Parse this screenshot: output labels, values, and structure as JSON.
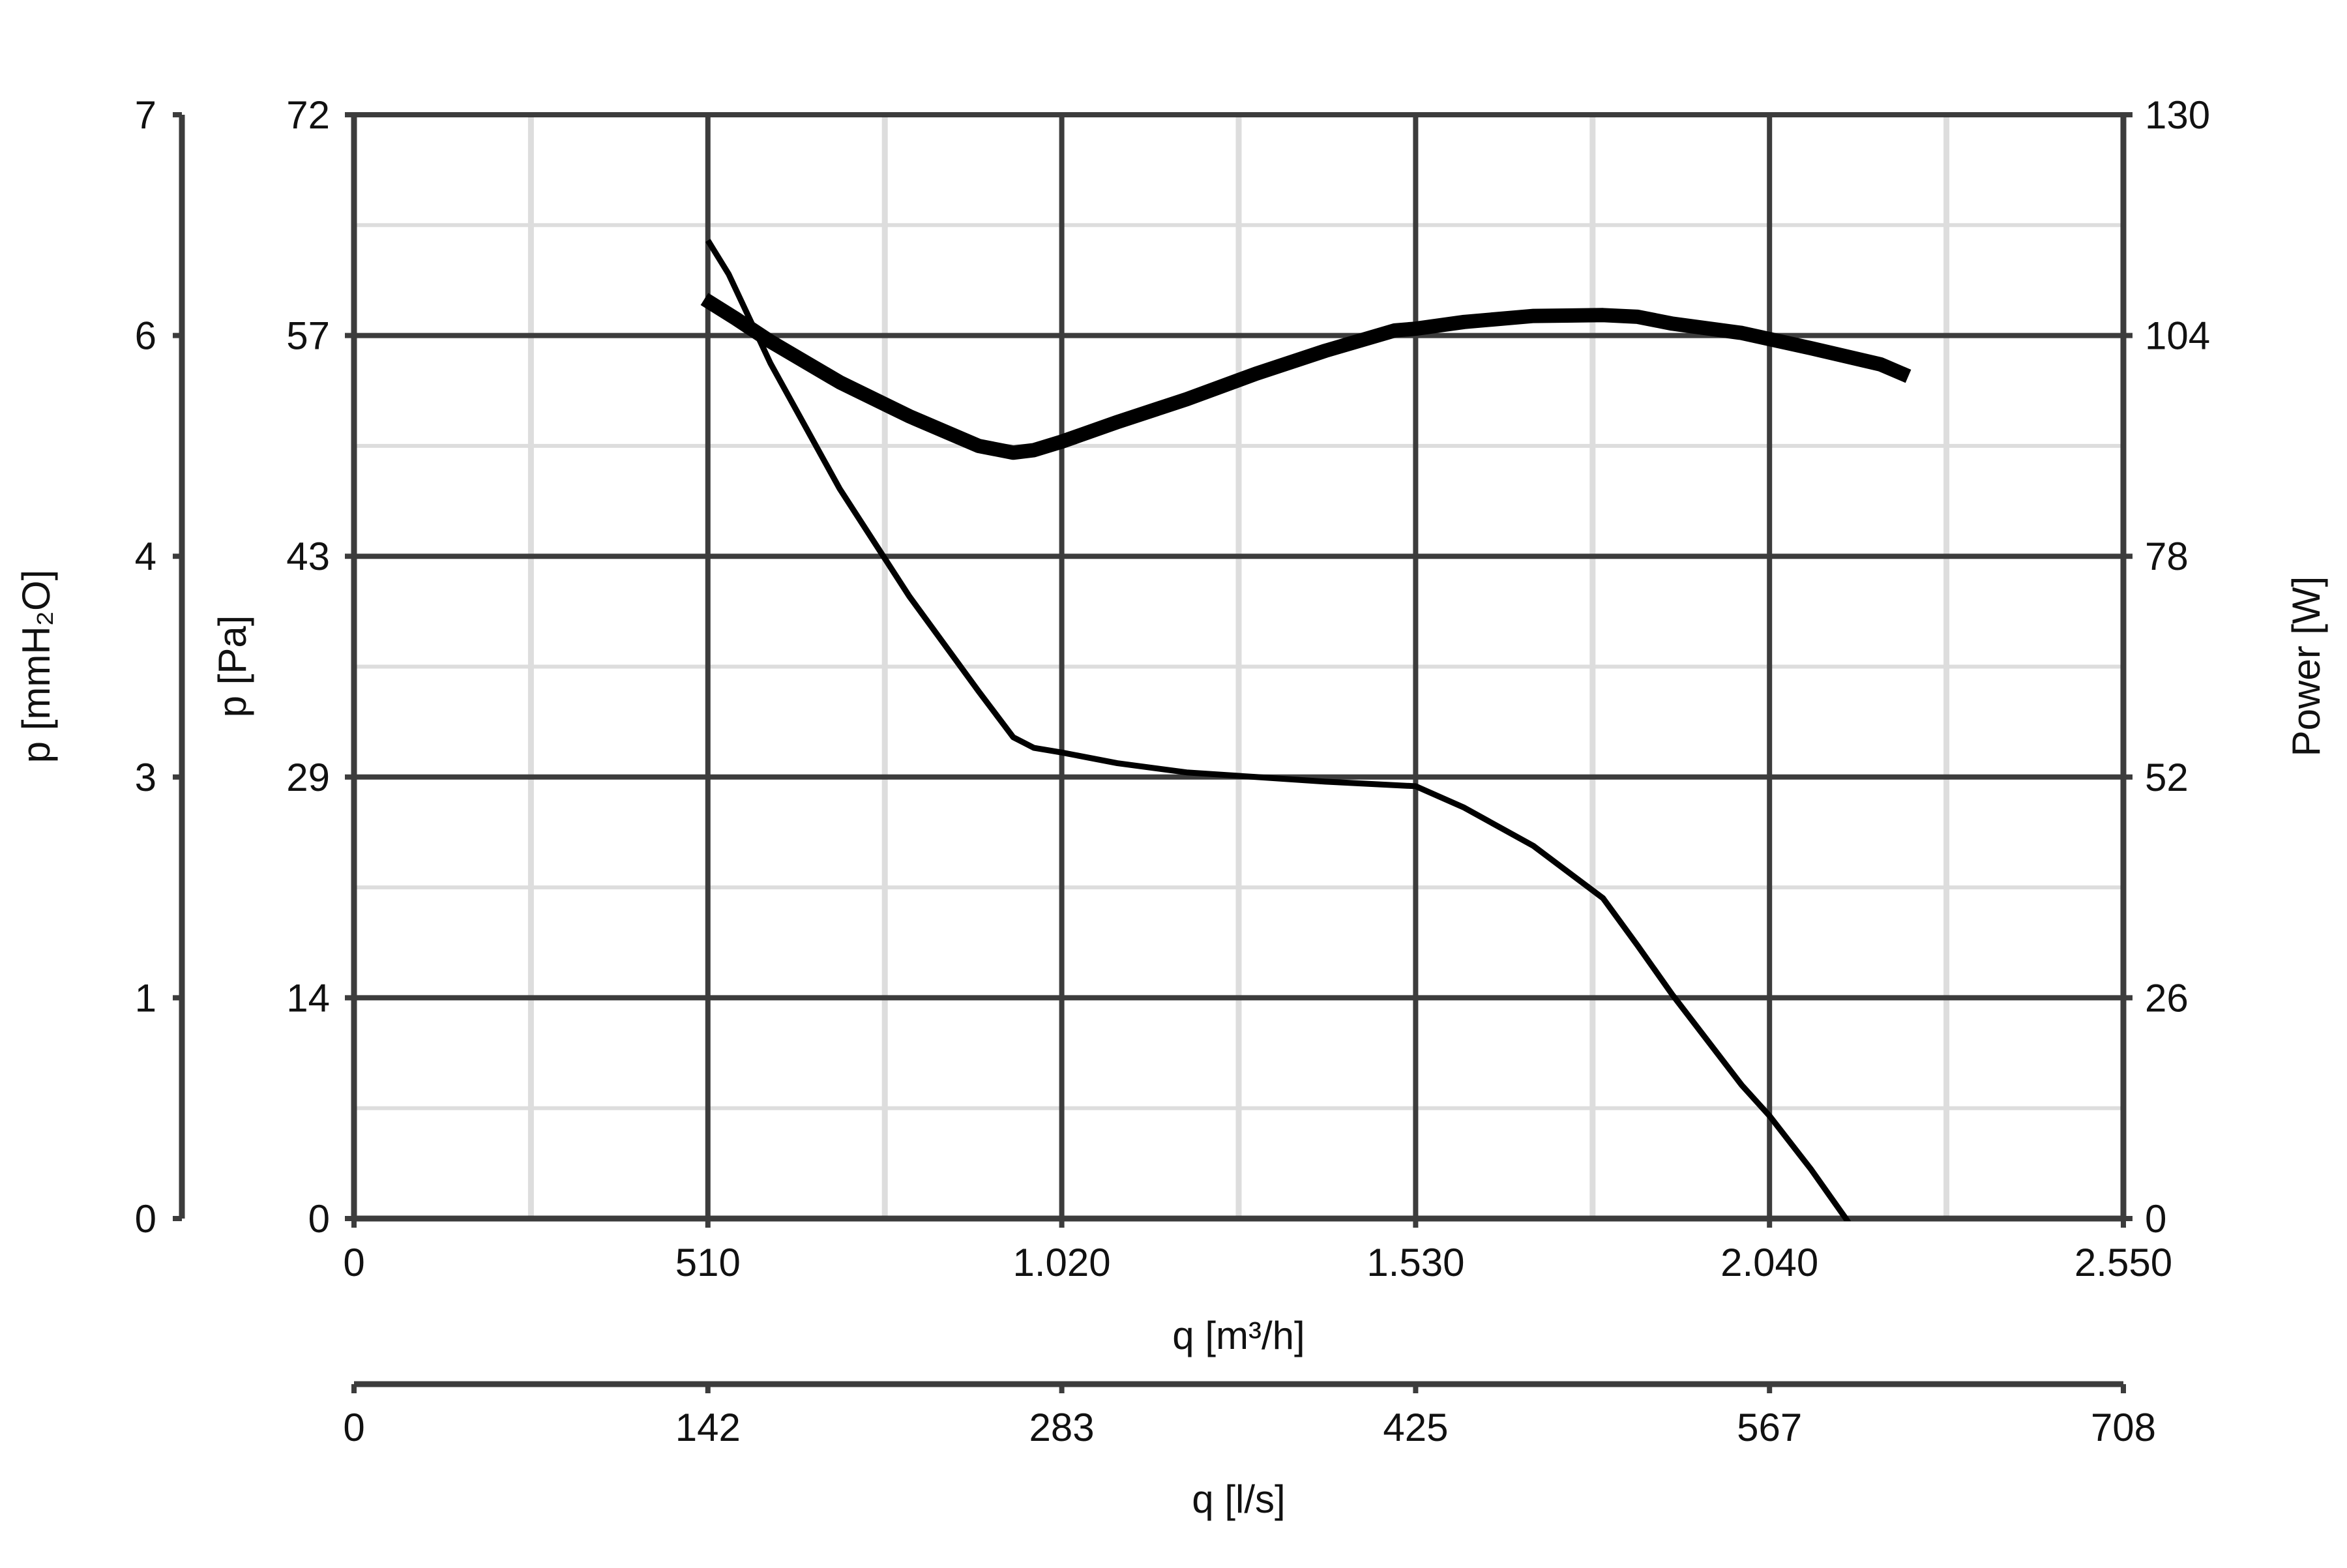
{
  "chart_data": {
    "type": "line",
    "x_axis": {
      "label": "q [m³/h]",
      "range": [
        0,
        2550
      ],
      "tick_values": [
        0,
        510,
        1020,
        1530,
        2040,
        2550
      ],
      "tick_labels": [
        "0",
        "510",
        "1.020",
        "1.530",
        "2.040",
        "2.550"
      ]
    },
    "x2_axis": {
      "label": "q [l/s]",
      "range": [
        0,
        708
      ],
      "tick_labels": [
        "0",
        "142",
        "283",
        "425",
        "567",
        "708"
      ]
    },
    "y_axis": {
      "label": "p [Pa]",
      "range": [
        0,
        72
      ],
      "tick_labels": [
        "0",
        "14",
        "29",
        "43",
        "57",
        "72"
      ]
    },
    "y2_axis": {
      "label": "p [mmH₂O]",
      "range": [
        0,
        7
      ],
      "tick_labels": [
        "0",
        "1",
        "3",
        "4",
        "6",
        "7"
      ]
    },
    "y3_axis": {
      "label": "Power [W]",
      "range": [
        0,
        130
      ],
      "tick_labels": [
        "0",
        "26",
        "52",
        "78",
        "104",
        "130"
      ]
    },
    "grid": true,
    "series": [
      {
        "axis": "pressure_pa",
        "stroke": "thin",
        "color": "#000000",
        "x": [
          510,
          540,
          600,
          700,
          800,
          900,
          950,
          980,
          1020,
          1100,
          1200,
          1300,
          1400,
          1530,
          1600,
          1700,
          1800,
          1850,
          1900,
          2000,
          2040,
          2100,
          2150,
          2200,
          2230,
          2245
        ],
        "y": [
          63.8,
          61.6,
          55.8,
          47.6,
          40.6,
          34.4,
          31.4,
          30.7,
          30.4,
          29.7,
          29.1,
          28.8,
          28.5,
          28.2,
          26.8,
          24.3,
          20.9,
          17.8,
          14.6,
          8.7,
          6.7,
          3.2,
          0.0,
          -3.6,
          -6.0,
          -7.4
        ]
      },
      {
        "axis": "power_w",
        "stroke": "thick",
        "color": "#000000",
        "x": [
          505,
          550,
          600,
          700,
          800,
          900,
          950,
          980,
          1020,
          1100,
          1200,
          1300,
          1400,
          1500,
          1530,
          1600,
          1700,
          1800,
          1850,
          1900,
          2000,
          2100,
          2200,
          2240
        ],
        "y": [
          108.3,
          106.0,
          103.3,
          98.5,
          94.5,
          91.0,
          90.2,
          90.5,
          91.5,
          93.8,
          96.5,
          99.5,
          102.2,
          104.6,
          104.8,
          105.6,
          106.3,
          106.4,
          106.2,
          105.4,
          104.3,
          102.5,
          100.6,
          99.2
        ]
      }
    ]
  }
}
